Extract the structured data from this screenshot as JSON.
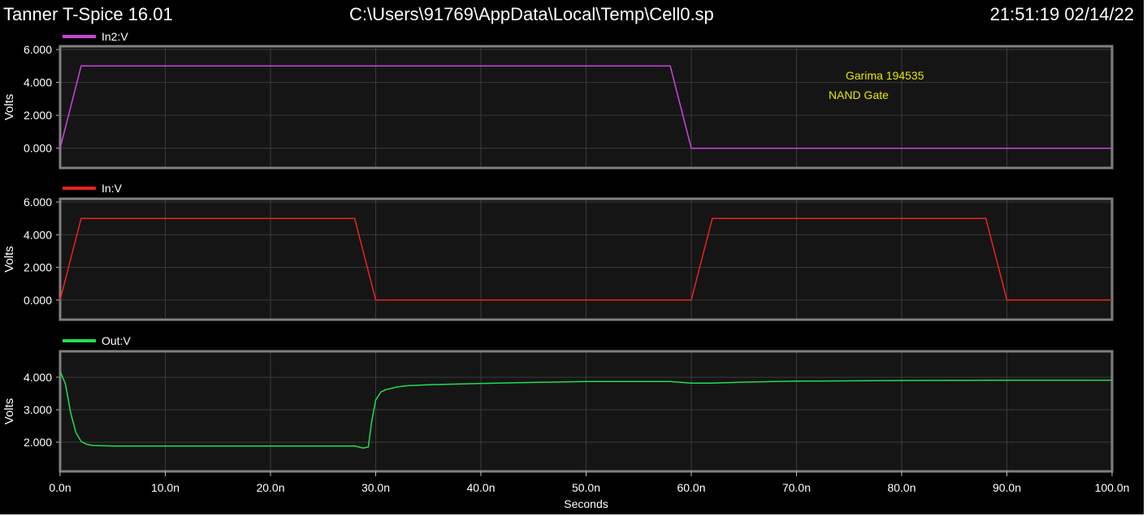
{
  "window": {
    "app_title": "Tanner T-Spice 16.01",
    "file_path": "C:\\Users\\91769\\AppData\\Local\\Temp\\Cell0.sp",
    "timestamp": "21:51:19 02/14/22"
  },
  "annotations": [
    "Garima 194535",
    "NAND Gate"
  ],
  "colors": {
    "background": "#000000",
    "plot_area": "#151515",
    "frame": "#808080",
    "grid": "#3a3a3a",
    "annotation_text": "#e6e600",
    "in2": "#cc44dd",
    "in": "#ee2222",
    "out": "#22dd55"
  },
  "chart_data": [
    {
      "type": "line",
      "series": [
        {
          "name": "In2:V",
          "color": "#cc44dd",
          "x": [
            0,
            2,
            58,
            60,
            100
          ],
          "y": [
            0,
            5,
            5,
            0,
            0
          ]
        }
      ],
      "xlim": [
        0,
        100
      ],
      "ylim": [
        -1.2,
        6.2
      ],
      "yticks": [
        0,
        2,
        4,
        6
      ],
      "ytick_labels": [
        "0.000",
        "2.000",
        "4.000",
        "6.000"
      ],
      "ylabel": "Volts",
      "grid": true
    },
    {
      "type": "line",
      "series": [
        {
          "name": "In:V",
          "color": "#ee2222",
          "x": [
            0,
            2,
            28,
            30,
            60,
            62,
            88,
            90,
            100
          ],
          "y": [
            0,
            5,
            5,
            0,
            0,
            5,
            5,
            0,
            0
          ]
        }
      ],
      "xlim": [
        0,
        100
      ],
      "ylim": [
        -1.2,
        6.2
      ],
      "yticks": [
        0,
        2,
        4,
        6
      ],
      "ytick_labels": [
        "0.000",
        "2.000",
        "4.000",
        "6.000"
      ],
      "ylabel": "Volts",
      "grid": true
    },
    {
      "type": "line",
      "series": [
        {
          "name": "Out:V",
          "color": "#22dd55",
          "x": [
            0,
            0.5,
            1.0,
            1.5,
            2.0,
            2.5,
            3.0,
            5,
            10,
            20,
            27,
            28,
            28.8,
            29.3,
            29.6,
            30.0,
            30.5,
            31,
            32,
            33,
            35,
            40,
            45,
            50,
            55,
            58,
            60,
            62,
            65,
            70,
            80,
            90,
            100
          ],
          "y": [
            4.18,
            3.8,
            2.9,
            2.3,
            2.02,
            1.94,
            1.9,
            1.88,
            1.88,
            1.88,
            1.88,
            1.88,
            1.82,
            1.85,
            2.6,
            3.3,
            3.55,
            3.62,
            3.7,
            3.74,
            3.77,
            3.81,
            3.84,
            3.87,
            3.87,
            3.87,
            3.82,
            3.82,
            3.85,
            3.88,
            3.9,
            3.91,
            3.91
          ]
        }
      ],
      "xlim": [
        0,
        100
      ],
      "ylim": [
        1.1,
        4.8
      ],
      "yticks": [
        2,
        3,
        4
      ],
      "ytick_labels": [
        "2.000",
        "3.000",
        "4.000"
      ],
      "ylabel": "Volts",
      "xlabel": "Seconds",
      "xticks": [
        0,
        10,
        20,
        30,
        40,
        50,
        60,
        70,
        80,
        90,
        100
      ],
      "xtick_labels": [
        "0.0n",
        "10.0n",
        "20.0n",
        "30.0n",
        "40.0n",
        "50.0n",
        "60.0n",
        "70.0n",
        "80.0n",
        "90.0n",
        "100.0n"
      ],
      "grid": true
    }
  ]
}
